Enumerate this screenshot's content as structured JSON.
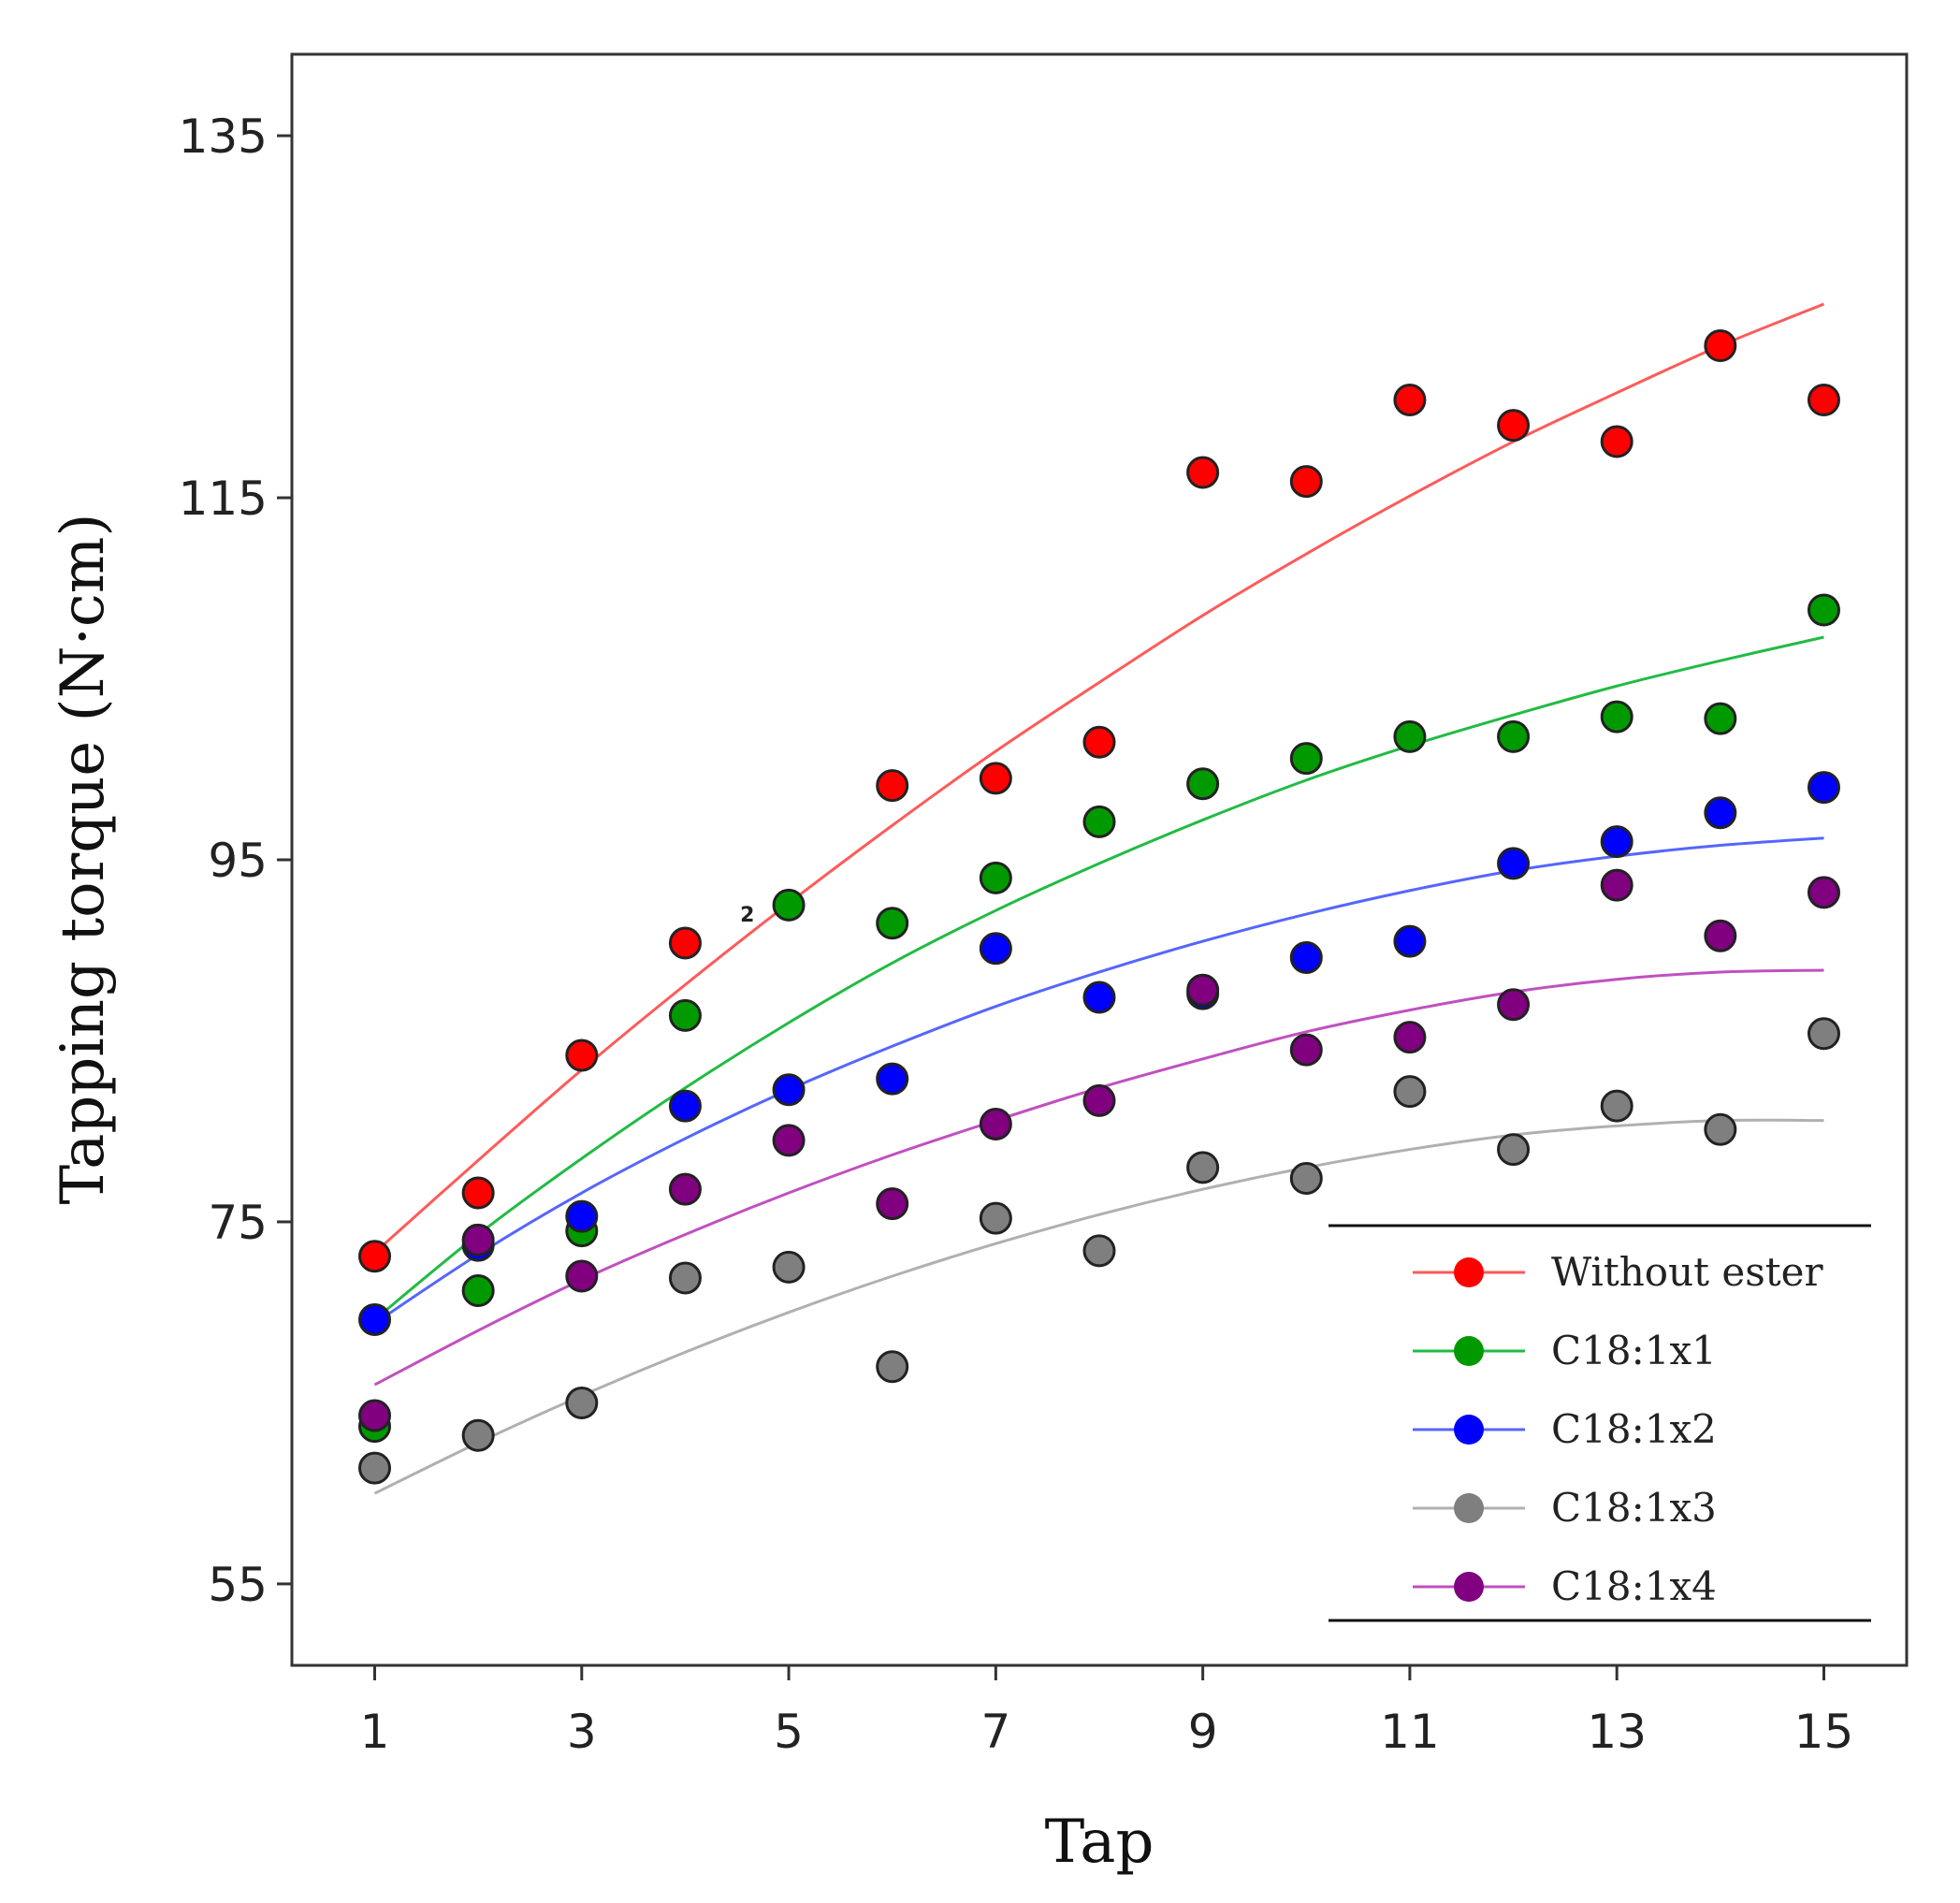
{
  "chart_data": {
    "type": "scatter",
    "xlabel": "Tap",
    "ylabel": "Tapping torque (N·cm)",
    "xlim": [
      0.2,
      15.8
    ],
    "ylim": [
      50.5,
      139.5
    ],
    "xticks": [
      1,
      3,
      5,
      7,
      9,
      11,
      13,
      15
    ],
    "yticks": [
      55,
      75,
      95,
      115,
      135
    ],
    "x": [
      1,
      2,
      3,
      4,
      5,
      6,
      7,
      8,
      9,
      10,
      11,
      12,
      13,
      14,
      15
    ],
    "annotation": {
      "text": "2",
      "x": 4.6,
      "y": 92
    },
    "legend_position": "bottom-right",
    "series": [
      {
        "name": "Without ester",
        "color": "#ff0000",
        "line_color": "#ff5a5a",
        "values": [
          73.1,
          76.6,
          84.2,
          90.4,
          null,
          99.1,
          99.5,
          101.5,
          116.4,
          115.9,
          120.4,
          119.0,
          118.1,
          123.4,
          120.4
        ],
        "fit": [
          73.3,
          78.4,
          83.4,
          88.1,
          92.6,
          96.9,
          101.0,
          104.8,
          108.5,
          111.9,
          115.1,
          118.1,
          120.8,
          123.4,
          125.7
        ]
      },
      {
        "name": "C18:1x1",
        "color": "#009900",
        "line_color": "#22bb44",
        "values": [
          63.7,
          71.2,
          74.5,
          86.4,
          92.5,
          91.5,
          94.0,
          97.1,
          99.2,
          100.6,
          101.8,
          101.8,
          102.9,
          102.8,
          108.8
        ],
        "fit": [
          69.6,
          74.3,
          78.5,
          82.4,
          86.0,
          89.3,
          92.2,
          94.8,
          97.2,
          99.4,
          101.3,
          103.0,
          104.6,
          106.0,
          107.3
        ]
      },
      {
        "name": "C18:1x2",
        "color": "#0000ff",
        "line_color": "#5566ff",
        "values": [
          69.6,
          73.7,
          75.3,
          81.4,
          82.3,
          82.9,
          90.1,
          87.4,
          87.6,
          89.6,
          90.5,
          94.8,
          96.0,
          97.6,
          99.0
        ],
        "fit": [
          69.4,
          73.2,
          76.6,
          79.6,
          82.3,
          84.7,
          86.9,
          88.8,
          90.5,
          92.0,
          93.3,
          94.4,
          95.2,
          95.8,
          96.2
        ]
      },
      {
        "name": "C18:1x3",
        "color": "#7f7f7f",
        "line_color": "#b0b0b0",
        "values": [
          61.4,
          63.2,
          65.0,
          71.9,
          72.5,
          67.0,
          75.2,
          73.4,
          78.0,
          77.4,
          82.2,
          79.0,
          81.4,
          80.1,
          85.4
        ],
        "fit": [
          60.0,
          62.8,
          65.4,
          67.8,
          70.0,
          72.0,
          73.8,
          75.4,
          76.8,
          78.0,
          79.0,
          79.8,
          80.3,
          80.6,
          80.6
        ]
      },
      {
        "name": "C18:1x4",
        "color": "#800080",
        "line_color": "#c050c0",
        "values": [
          64.3,
          74.0,
          72.0,
          76.8,
          79.5,
          76.0,
          80.4,
          81.7,
          87.8,
          84.5,
          85.2,
          87.0,
          93.6,
          90.8,
          93.2
        ],
        "fit": [
          66.0,
          69.0,
          71.8,
          74.3,
          76.6,
          78.7,
          80.6,
          82.4,
          84.0,
          85.5,
          86.7,
          87.7,
          88.4,
          88.8,
          88.9
        ]
      }
    ]
  }
}
